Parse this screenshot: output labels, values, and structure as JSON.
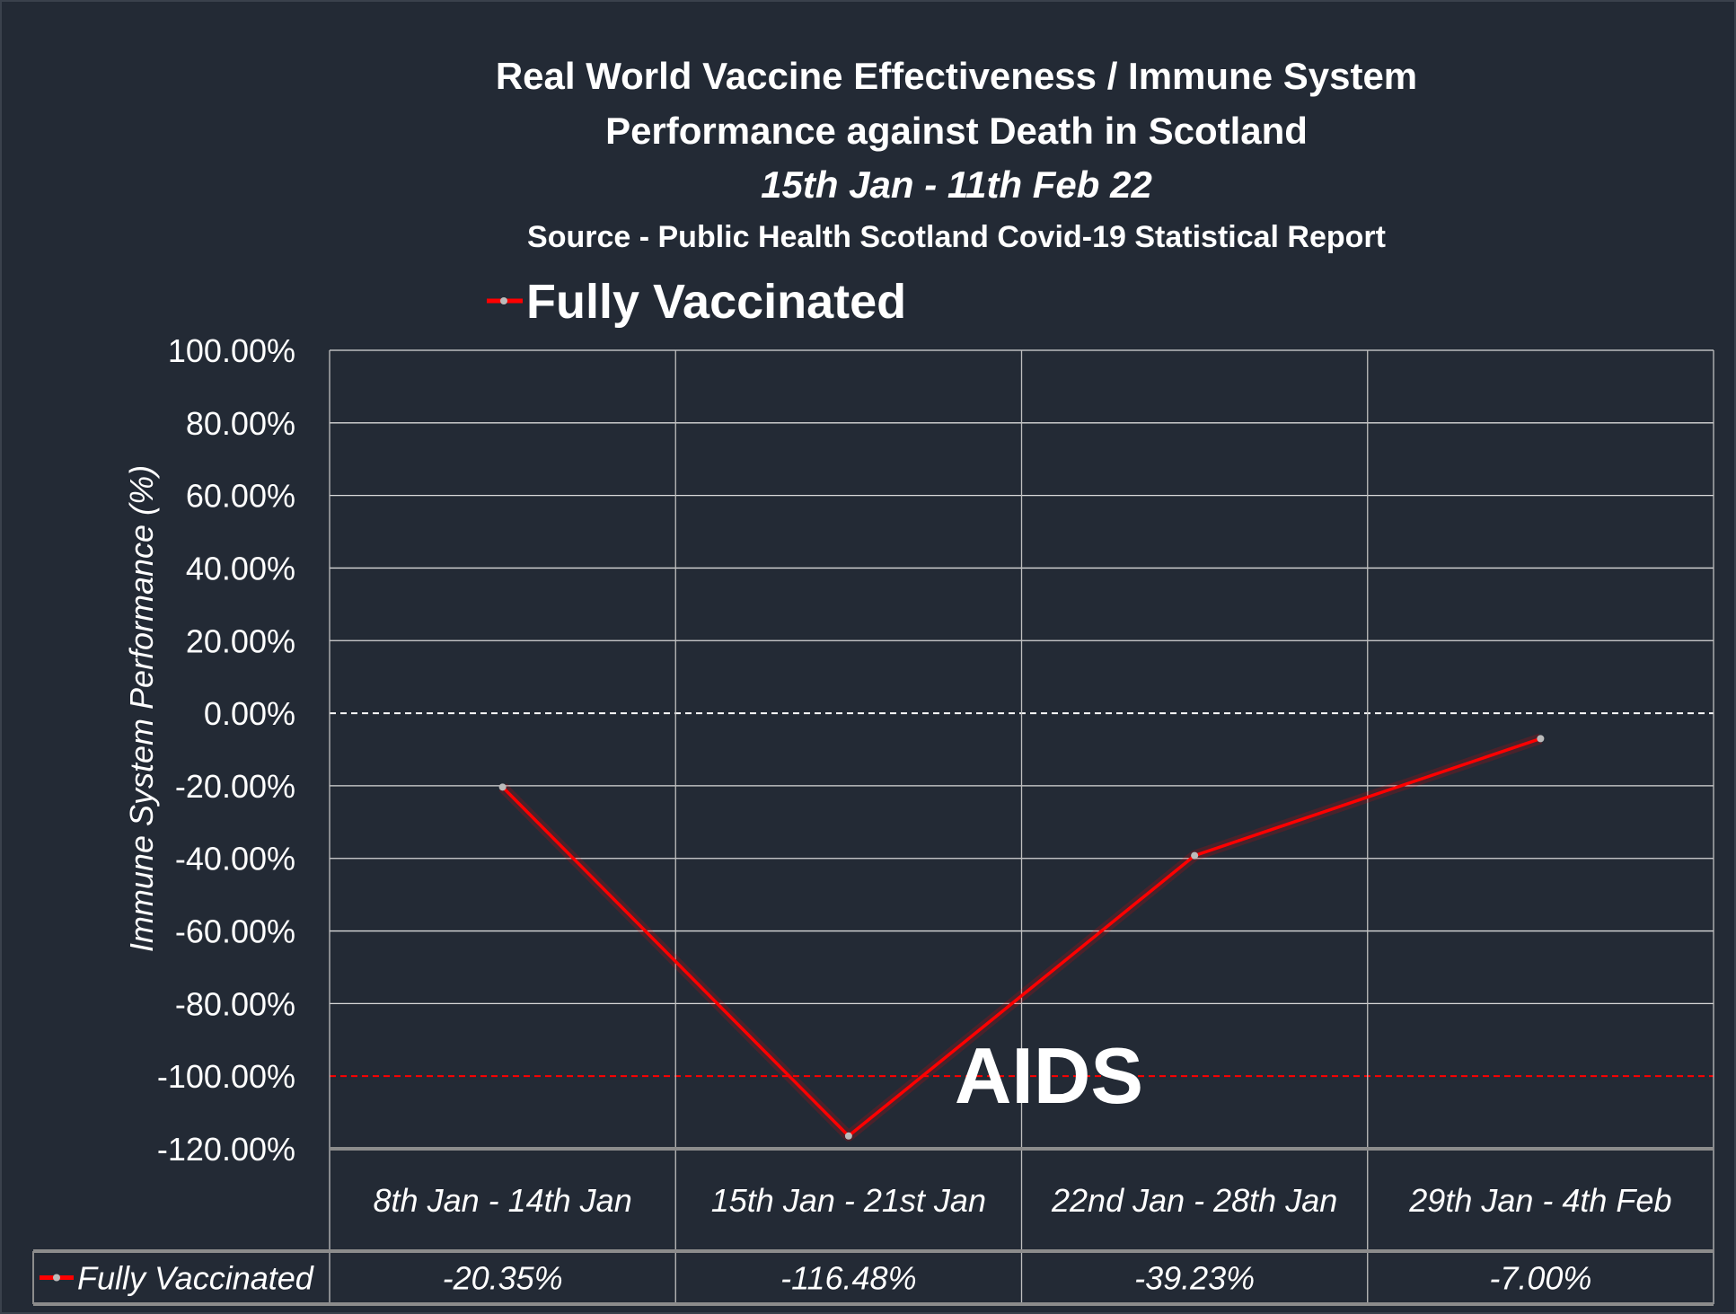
{
  "chart_data": {
    "type": "line",
    "title_lines": [
      "Real World Vaccine Effectiveness / Immune System",
      "Performance against Death in Scotland"
    ],
    "subtitle": "15th Jan - 11th Feb 22",
    "source": "Source - Public Health Scotland Covid-19 Statistical Report",
    "ylabel": "Immune System Performance (%)",
    "xlabel": "",
    "ylim": [
      -120,
      100
    ],
    "yticks": [
      100,
      80,
      60,
      40,
      20,
      0,
      -20,
      -40,
      -60,
      -80,
      -100,
      -120
    ],
    "ytick_labels": [
      "100.00%",
      "80.00%",
      "60.00%",
      "40.00%",
      "20.00%",
      "0.00%",
      "-20.00%",
      "-40.00%",
      "-60.00%",
      "-80.00%",
      "-100.00%",
      "-120.00%"
    ],
    "categories": [
      "8th Jan - 14th Jan",
      "15th Jan - 21st Jan",
      "22nd Jan - 28th Jan",
      "29th Jan - 4th Feb"
    ],
    "series": [
      {
        "name": "Fully Vaccinated",
        "values": [
          -20.35,
          -116.48,
          -39.23,
          -7.0
        ],
        "labels": [
          "-20.35%",
          "-116.48%",
          "-39.23%",
          "-7.00%"
        ],
        "color": "#ff0000"
      }
    ],
    "reference_lines": [
      {
        "value": 0,
        "color": "#ffffff",
        "style": "dashed"
      },
      {
        "value": -100,
        "color": "#ff0000",
        "style": "dashed",
        "annotation": "AIDS"
      }
    ],
    "annotation_color": "#d40000",
    "legend": "top-left",
    "grid": true,
    "data_table": true,
    "background": "#232a35"
  }
}
